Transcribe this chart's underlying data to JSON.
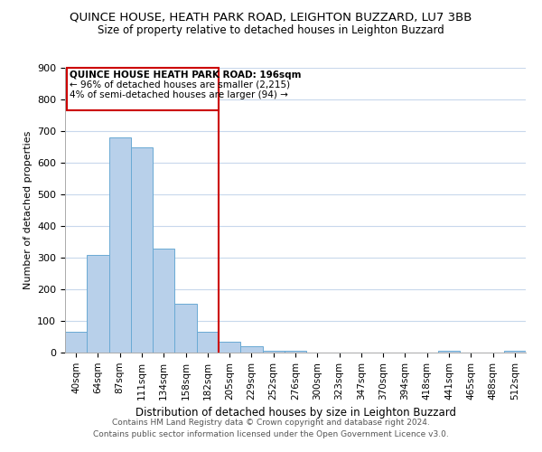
{
  "title": "QUINCE HOUSE, HEATH PARK ROAD, LEIGHTON BUZZARD, LU7 3BB",
  "subtitle": "Size of property relative to detached houses in Leighton Buzzard",
  "xlabel": "Distribution of detached houses by size in Leighton Buzzard",
  "ylabel": "Number of detached properties",
  "bin_labels": [
    "40sqm",
    "64sqm",
    "87sqm",
    "111sqm",
    "134sqm",
    "158sqm",
    "182sqm",
    "205sqm",
    "229sqm",
    "252sqm",
    "276sqm",
    "300sqm",
    "323sqm",
    "347sqm",
    "370sqm",
    "394sqm",
    "418sqm",
    "441sqm",
    "465sqm",
    "488sqm",
    "512sqm"
  ],
  "bar_heights": [
    65,
    310,
    680,
    648,
    330,
    153,
    65,
    35,
    20,
    5,
    5,
    0,
    0,
    0,
    0,
    0,
    0,
    5,
    0,
    0,
    5
  ],
  "bar_color": "#b8d0ea",
  "bar_edge_color": "#6aaad4",
  "vline_color": "#cc0000",
  "ylim": [
    0,
    900
  ],
  "yticks": [
    0,
    100,
    200,
    300,
    400,
    500,
    600,
    700,
    800,
    900
  ],
  "annotation_title": "QUINCE HOUSE HEATH PARK ROAD: 196sqm",
  "annotation_line1": "← 96% of detached houses are smaller (2,215)",
  "annotation_line2": "4% of semi-detached houses are larger (94) →",
  "annotation_box_color": "#cc0000",
  "footer_line1": "Contains HM Land Registry data © Crown copyright and database right 2024.",
  "footer_line2": "Contains public sector information licensed under the Open Government Licence v3.0.",
  "background_color": "#ffffff",
  "grid_color": "#c8d8ec"
}
